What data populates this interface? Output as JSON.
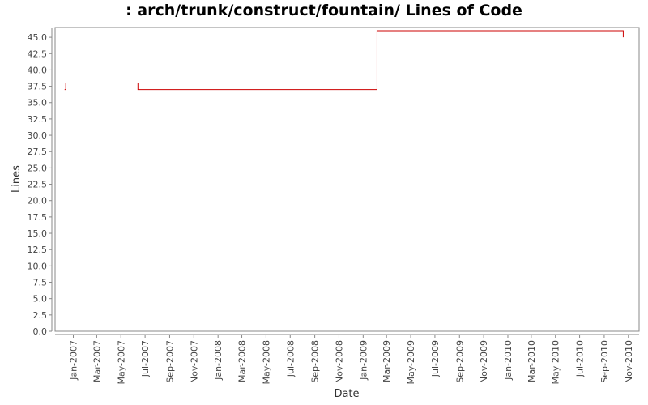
{
  "chart_data": {
    "type": "line",
    "title": ": arch/trunk/construct/fountain/ Lines of Code",
    "xlabel": "Date",
    "ylabel": "Lines",
    "xlim": [
      "2006-11-16",
      "2010-11-28"
    ],
    "ylim": [
      0,
      46.5
    ],
    "yticks": [
      0.0,
      2.5,
      5.0,
      7.5,
      10.0,
      12.5,
      15.0,
      17.5,
      20.0,
      22.5,
      25.0,
      27.5,
      30.0,
      32.5,
      35.0,
      37.5,
      40.0,
      42.5,
      45.0
    ],
    "ytick_labels": [
      "0.0",
      "2.5",
      "5.0",
      "7.5",
      "10.0",
      "12.5",
      "15.0",
      "17.5",
      "20.0",
      "22.5",
      "25.0",
      "27.5",
      "30.0",
      "32.5",
      "35.0",
      "37.5",
      "40.0",
      "42.5",
      "45.0"
    ],
    "xticks": [
      "2007-01-01",
      "2007-03-01",
      "2007-05-01",
      "2007-07-01",
      "2007-09-01",
      "2007-11-01",
      "2008-01-01",
      "2008-03-01",
      "2008-05-01",
      "2008-07-01",
      "2008-09-01",
      "2008-11-01",
      "2009-01-01",
      "2009-03-01",
      "2009-05-01",
      "2009-07-01",
      "2009-09-01",
      "2009-11-01",
      "2010-01-01",
      "2010-03-01",
      "2010-05-01",
      "2010-07-01",
      "2010-09-01",
      "2010-11-01"
    ],
    "xtick_labels": [
      "Jan-2007",
      "Mar-2007",
      "May-2007",
      "Jul-2007",
      "Sep-2007",
      "Nov-2007",
      "Jan-2008",
      "Mar-2008",
      "May-2008",
      "Jul-2008",
      "Sep-2008",
      "Nov-2008",
      "Jan-2009",
      "Mar-2009",
      "May-2009",
      "Jul-2009",
      "Sep-2009",
      "Nov-2009",
      "Jan-2010",
      "Mar-2010",
      "May-2010",
      "Jul-2010",
      "Sep-2010",
      "Nov-2010"
    ],
    "grid": false,
    "series": [
      {
        "step": true,
        "color": "#cc0000",
        "points": [
          {
            "x": "2006-12-10",
            "y": 37
          },
          {
            "x": "2006-12-13",
            "y": 38
          },
          {
            "x": "2007-06-13",
            "y": 37
          },
          {
            "x": "2009-02-05",
            "y": 46
          },
          {
            "x": "2010-10-19",
            "y": 45
          }
        ]
      }
    ]
  }
}
